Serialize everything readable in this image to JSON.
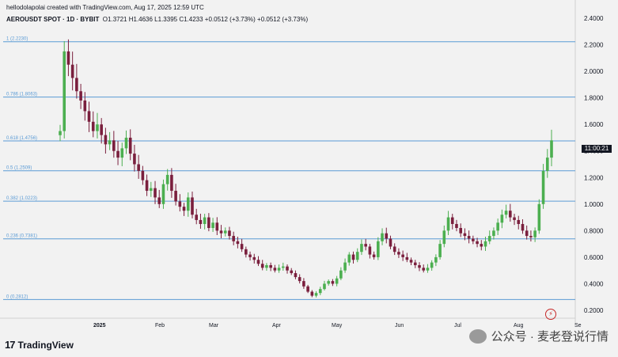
{
  "header": {
    "created": "hellodolapolai created with TradingView.com, Aug 17, 2025 12:59 UTC",
    "symbol": "AEROUSDT SPOT · 1D · BYBIT",
    "ohlc": "O1.3721  H1.4636  L1.3395  C1.4233  +0.0512 (+3.73%)  +0.0512 (+3.73%)"
  },
  "price_badge": "11:00:21",
  "branding": {
    "logo_mark": "17",
    "logo_text": "TradingView"
  },
  "watermark": {
    "text": "公众号 · 麦老登说行情"
  },
  "chart_data": {
    "type": "candlestick",
    "y_ticks": [
      "2.4000",
      "2.2000",
      "2.0000",
      "1.8000",
      "1.6000",
      "1.4000",
      "1.2000",
      "1.0000",
      "0.8000",
      "0.6000",
      "0.4000",
      "0.2000"
    ],
    "ylim": [
      0.2,
      2.4
    ],
    "x_ticks": [
      "2025",
      "Feb",
      "Mar",
      "Apr",
      "May",
      "Jun",
      "Jul",
      "Aug",
      "Se"
    ],
    "fib_levels": [
      {
        "label": "1 (2.2230)",
        "value": 2.223
      },
      {
        "label": "0.786 (1.8063)",
        "value": 1.8063
      },
      {
        "label": "0.618 (1.4756)",
        "value": 1.4756
      },
      {
        "label": "0.5 (1.2509)",
        "value": 1.2509
      },
      {
        "label": "0.382 (1.0223)",
        "value": 1.0223
      },
      {
        "label": "0.236 (0.7381)",
        "value": 0.7381
      },
      {
        "label": "0 (0.2812)",
        "value": 0.2812
      }
    ],
    "fib_color": "#5b9bd5",
    "up_color": "#4caf50",
    "down_color": "#7a1f3d",
    "close_series": [
      1.55,
      2.15,
      2.05,
      1.95,
      1.85,
      1.78,
      1.7,
      1.62,
      1.55,
      1.6,
      1.52,
      1.45,
      1.48,
      1.4,
      1.35,
      1.42,
      1.5,
      1.38,
      1.3,
      1.25,
      1.18,
      1.1,
      1.12,
      1.05,
      1.0,
      1.15,
      1.22,
      1.1,
      1.02,
      0.98,
      0.95,
      1.05,
      0.92,
      0.88,
      0.85,
      0.9,
      0.82,
      0.86,
      0.8,
      0.78,
      0.8,
      0.76,
      0.72,
      0.7,
      0.66,
      0.62,
      0.6,
      0.58,
      0.55,
      0.52,
      0.54,
      0.52,
      0.5,
      0.52,
      0.53,
      0.5,
      0.48,
      0.45,
      0.42,
      0.38,
      0.34,
      0.31,
      0.33,
      0.36,
      0.4,
      0.42,
      0.4,
      0.44,
      0.5,
      0.56,
      0.62,
      0.58,
      0.64,
      0.7,
      0.68,
      0.62,
      0.6,
      0.72,
      0.78,
      0.74,
      0.68,
      0.64,
      0.62,
      0.6,
      0.58,
      0.56,
      0.54,
      0.52,
      0.5,
      0.52,
      0.56,
      0.6,
      0.7,
      0.8,
      0.9,
      0.85,
      0.82,
      0.78,
      0.76,
      0.74,
      0.72,
      0.7,
      0.68,
      0.72,
      0.76,
      0.8,
      0.86,
      0.92,
      0.95,
      0.9,
      0.88,
      0.85,
      0.8,
      0.76,
      0.75,
      0.8,
      1.0,
      1.25,
      1.35,
      1.48
    ]
  }
}
